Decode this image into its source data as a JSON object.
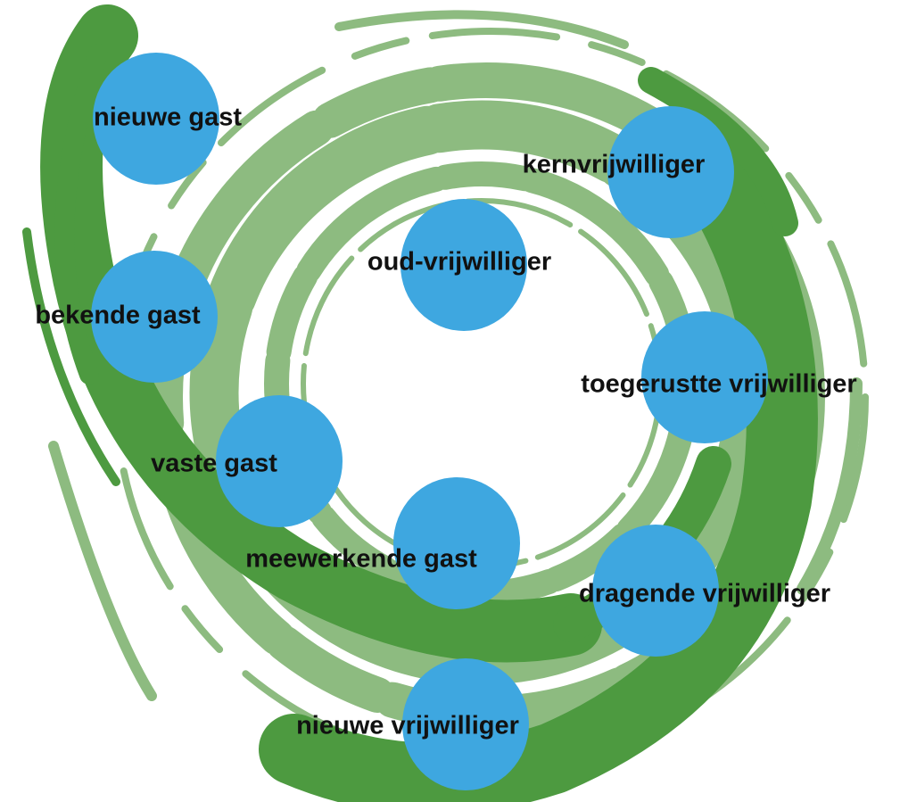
{
  "nodes": [
    {
      "label": "nieuwe gast"
    },
    {
      "label": "kernvrijwilliger"
    },
    {
      "label": "oud-vrijwilliger"
    },
    {
      "label": "bekende gast"
    },
    {
      "label": "toegerustte vrijwilliger"
    },
    {
      "label": "vaste gast"
    },
    {
      "label": "meewerkende gast"
    },
    {
      "label": "dragende vrijwilliger"
    },
    {
      "label": "nieuwe vrijwilliger"
    }
  ]
}
